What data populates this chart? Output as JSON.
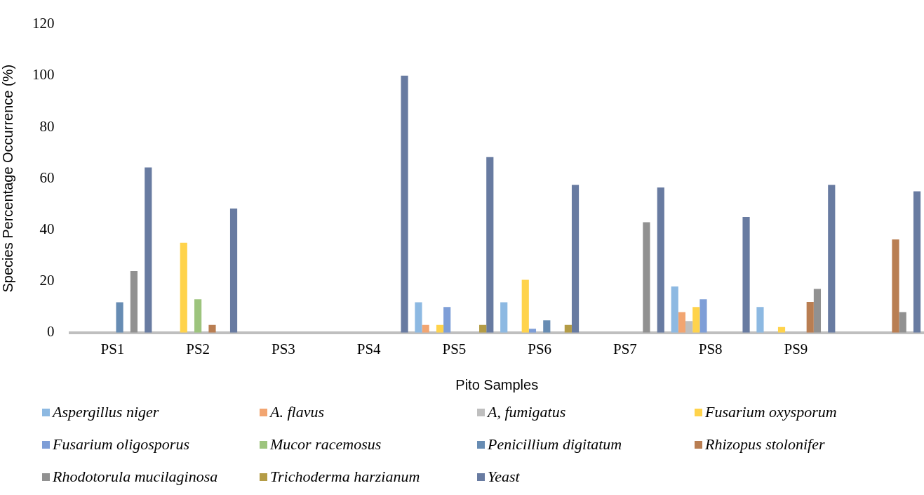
{
  "chart_data": {
    "type": "bar",
    "xlabel": "Pito Samples",
    "ylabel": "Species Percentage Occurrence (%)",
    "categories": [
      "PS1",
      "PS2",
      "PS3",
      "PS4",
      "PS5",
      "PS6",
      "PS7",
      "PS8",
      "PS9",
      null
    ],
    "ylim": [
      0,
      120
    ],
    "yticks": [
      0,
      20,
      40,
      60,
      80,
      100,
      120
    ],
    "grid": false,
    "legend": "bottom",
    "series": [
      {
        "name": "Aspergillus niger",
        "color": "#8db9e2",
        "values": [
          0,
          0,
          0,
          0,
          11.8,
          11.8,
          0,
          18,
          10,
          0
        ]
      },
      {
        "name": "A. flavus",
        "color": "#f2a571",
        "values": [
          0,
          0,
          0,
          0,
          3,
          0,
          0,
          8,
          0,
          0
        ]
      },
      {
        "name": "A, fumigatus",
        "color": "#bfbfbf",
        "values": [
          0,
          0,
          0,
          0,
          0,
          0,
          0,
          4.5,
          0,
          0
        ]
      },
      {
        "name": "Fusarium oxysporum",
        "color": "#ffd34b",
        "values": [
          0,
          35,
          0,
          0,
          3,
          20.6,
          0,
          10,
          2.2,
          0
        ]
      },
      {
        "name": "Fusarium oligosporus",
        "color": "#7e9ed7",
        "values": [
          0,
          0,
          0,
          0,
          10,
          1.5,
          0,
          13,
          0,
          0
        ]
      },
      {
        "name": "Mucor racemosus",
        "color": "#9dc47d",
        "values": [
          0,
          13,
          0,
          0,
          0,
          0,
          0,
          0,
          0,
          0
        ]
      },
      {
        "name": "Penicillium digitatum",
        "color": "#678cb3",
        "values": [
          11.8,
          0,
          0,
          0,
          0,
          4.8,
          0,
          0,
          0,
          0
        ]
      },
      {
        "name": "Rhizopus stolonifer",
        "color": "#b97e52",
        "values": [
          0,
          3,
          0,
          0,
          0,
          0,
          0,
          0,
          12,
          36.3
        ]
      },
      {
        "name": "Rhodotorula mucilaginosa",
        "color": "#919191",
        "values": [
          24,
          0,
          0,
          0,
          0,
          0,
          43,
          0,
          17,
          8
        ]
      },
      {
        "name": "Trichoderma harzianum",
        "color": "#b49c46",
        "values": [
          0,
          0,
          0,
          0,
          3,
          3,
          0,
          0,
          0,
          0
        ]
      },
      {
        "name": "Yeast",
        "color": "#687ba1",
        "values": [
          64.3,
          48.3,
          0,
          100,
          68.3,
          57.5,
          56.5,
          45,
          57.5,
          55
        ]
      }
    ]
  }
}
